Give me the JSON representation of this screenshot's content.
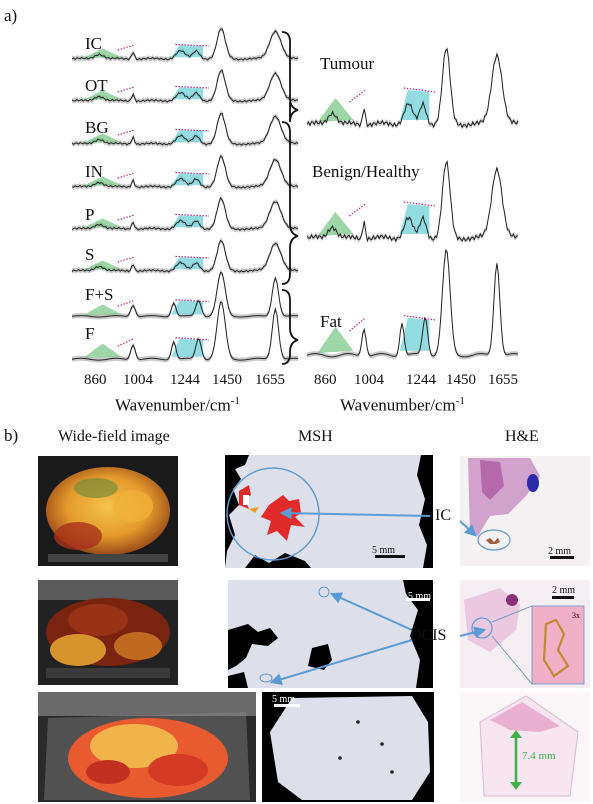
{
  "panel_a": {
    "letter": "a)",
    "left_labels": [
      "IC",
      "OT",
      "BG",
      "IN",
      "P",
      "S",
      "F+S",
      "F"
    ],
    "right_labels": {
      "tumour": "Tumour",
      "benign": "Benign/Healthy",
      "fat": "Fat"
    },
    "ticks": [
      "860",
      "1004",
      "1244",
      "1450",
      "1655"
    ],
    "xlabel": "Wavenumber/cm",
    "xlabel_sup": "-1"
  },
  "panel_b": {
    "letter": "b)",
    "columns": {
      "wide": "Wide-field image",
      "msh": "MSH",
      "he": "H&E"
    },
    "callouts": {
      "ic": "IC",
      "dcis": "DCIS"
    },
    "scalebars": {
      "msh1": "5 mm",
      "he1": "2 mm",
      "msh2": "5 mm",
      "he2": "2 mm",
      "inset": "3x",
      "msh3": "5 mm",
      "he3": "7.4 mm"
    }
  },
  "colors": {
    "green_band": "#7dc98a",
    "cyan_band": "#6fd0d8",
    "magenta_dots": "#c0268a",
    "arrow_blue": "#5b9bd5",
    "red_tumour": "#e12a2a",
    "green_arrow": "#3fb04a"
  },
  "chart_data": [
    {
      "type": "line",
      "title": "",
      "xlabel": "Wavenumber/cm-1",
      "ylabel": "",
      "x_ticks": [
        860,
        1004,
        1244,
        1450,
        1655
      ],
      "series": [
        {
          "name": "IC"
        },
        {
          "name": "OT"
        },
        {
          "name": "BG"
        },
        {
          "name": "IN"
        },
        {
          "name": "P"
        },
        {
          "name": "S"
        },
        {
          "name": "F+S"
        },
        {
          "name": "F"
        }
      ]
    },
    {
      "type": "line",
      "title": "",
      "xlabel": "Wavenumber/cm-1",
      "ylabel": "",
      "x_ticks": [
        860,
        1004,
        1244,
        1450,
        1655
      ],
      "series": [
        {
          "name": "Tumour"
        },
        {
          "name": "Benign/Healthy"
        },
        {
          "name": "Fat"
        }
      ]
    }
  ]
}
